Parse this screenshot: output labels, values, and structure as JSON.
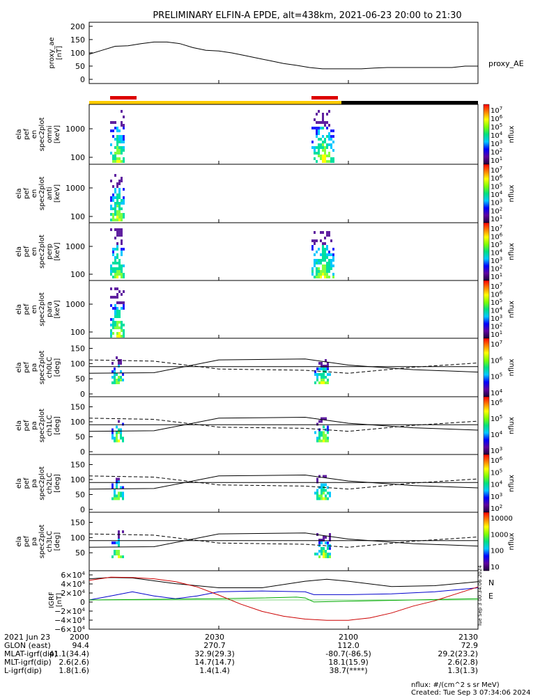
{
  "title": "PRELIMINARY ELFIN-A EPDE, alt=438km, 2021-06-23 20:00 to 21:30",
  "chart_data": {
    "type": "line",
    "x_range": [
      "20:00",
      "21:30"
    ],
    "panels": [
      {
        "id": "proxy_ae",
        "ylabel": [
          "proxy_ae",
          "[nT]"
        ],
        "yticks": [
          "200",
          "150",
          "100",
          "50",
          "0"
        ],
        "ylim": [
          0,
          210
        ],
        "legend": "proxy_AE",
        "series": [
          {
            "name": "proxy_AE",
            "color": "#000000",
            "x": [
              0,
              3,
              6,
              9,
              12,
              15,
              18,
              21,
              24,
              27,
              30,
              33,
              36,
              39,
              42,
              45,
              48,
              51,
              54,
              57,
              60,
              63,
              66,
              69,
              72,
              75,
              78,
              81,
              84,
              87,
              90
            ],
            "y": [
              100,
              115,
              130,
              132,
              140,
              146,
              146,
              140,
              125,
              115,
              112,
              105,
              95,
              85,
              75,
              65,
              58,
              50,
              45,
              45,
              45,
              45,
              48,
              50,
              50,
              50,
              50,
              50,
              50,
              55,
              55
            ]
          }
        ]
      },
      {
        "id": "omni",
        "ylabel": [
          "ela",
          "pef",
          "en",
          "spec2plot",
          "omni",
          "[keV]"
        ],
        "yticks": [
          "1000",
          "100"
        ],
        "cbar_ticks": [
          "10^7",
          "10^6",
          "10^5",
          "10^4",
          "10^3",
          "10^2",
          "10^1"
        ],
        "cbar_label": "nflux"
      },
      {
        "id": "anti",
        "ylabel": [
          "ela",
          "pef",
          "en",
          "spec2plot",
          "anti",
          "[keV]"
        ],
        "yticks": [
          "1000",
          "100"
        ],
        "cbar_ticks": [
          "10^7",
          "10^6",
          "10^5",
          "10^4",
          "10^3",
          "10^2",
          "10^1"
        ],
        "cbar_label": "nflux"
      },
      {
        "id": "perp",
        "ylabel": [
          "ela",
          "pef",
          "en",
          "spec2plot",
          "perp",
          "[keV]"
        ],
        "yticks": [
          "1000",
          "100"
        ],
        "cbar_ticks": [
          "10^7",
          "10^6",
          "10^5",
          "10^4",
          "10^3",
          "10^2",
          "10^1"
        ],
        "cbar_label": "nflux"
      },
      {
        "id": "para",
        "ylabel": [
          "ela",
          "pef",
          "en",
          "spec2plot",
          "para",
          "[keV]"
        ],
        "yticks": [
          "1000",
          "100"
        ],
        "cbar_ticks": [
          "10^7",
          "10^6",
          "10^5",
          "10^4",
          "10^3",
          "10^2",
          "10^1"
        ],
        "cbar_label": "nflux"
      },
      {
        "id": "ch0LC",
        "ylabel": [
          "ela",
          "pef",
          "pa",
          "spec2plot",
          "ch0LC",
          "[deg]"
        ],
        "yticks": [
          "150",
          "100",
          "50",
          "0"
        ],
        "cbar_ticks": [
          "10^7",
          "10^6",
          "10^5",
          "10^4"
        ],
        "cbar_label": "nflux"
      },
      {
        "id": "ch1LC",
        "ylabel": [
          "ela",
          "pef",
          "pa",
          "spec2plot",
          "ch1LC",
          "[deg]"
        ],
        "yticks": [
          "150",
          "100",
          "50",
          "0"
        ],
        "cbar_ticks": [
          "10^6",
          "10^5",
          "10^4",
          "10^3"
        ],
        "cbar_label": "nflux"
      },
      {
        "id": "ch2LC",
        "ylabel": [
          "ela",
          "pef",
          "pa",
          "spec2plot",
          "ch2LC",
          "[deg]"
        ],
        "yticks": [
          "150",
          "100",
          "50",
          "0"
        ],
        "cbar_ticks": [
          "10^6",
          "10^5",
          "10^4",
          "10^3",
          "10^2"
        ],
        "cbar_label": "nflux"
      },
      {
        "id": "ch3LC",
        "ylabel": [
          "ela",
          "pef",
          "pa",
          "spec2plot",
          "ch3LC",
          "[deg]"
        ],
        "yticks": [
          "150",
          "100",
          "50"
        ],
        "cbar_ticks": [
          "10000",
          "1000",
          "100",
          "10"
        ],
        "cbar_label": "nflux"
      },
      {
        "id": "igrf",
        "ylabel": [
          "IGRF",
          "[nT]"
        ],
        "yticks": [
          "6×10^4",
          "4×10^4",
          "2×10^4",
          "0",
          "−2×10^4",
          "−4×10^4",
          "−6×10^4"
        ],
        "ylim": [
          -65000,
          65000
        ],
        "legend": [
          "N",
          "E"
        ],
        "series": [
          {
            "color": "#000000",
            "x": [
              0,
              5,
              10,
              20,
              30,
              40,
              50,
              55,
              60,
              70,
              80,
              90
            ],
            "y": [
              52000,
              55000,
              54000,
              40000,
              30000,
              30000,
              46000,
              51000,
              46000,
              33000,
              35000,
              45000
            ]
          },
          {
            "color": "#0000cc",
            "x": [
              0,
              5,
              10,
              15,
              20,
              25,
              30,
              40,
              50,
              52,
              60,
              70,
              80,
              90
            ],
            "y": [
              0,
              10000,
              20000,
              10000,
              3000,
              10000,
              20000,
              22000,
              20000,
              13000,
              13000,
              15000,
              20000,
              30000
            ]
          },
          {
            "color": "#00aa00",
            "x": [
              0,
              10,
              20,
              30,
              40,
              48,
              50,
              52,
              60,
              70,
              80,
              90
            ],
            "y": [
              0,
              1000,
              2000,
              3000,
              5000,
              7000,
              5000,
              -5000,
              -3000,
              -1000,
              1000,
              3000
            ]
          },
          {
            "color": "#cc0000",
            "x": [
              0,
              5,
              10,
              15,
              20,
              25,
              30,
              35,
              40,
              45,
              50,
              55,
              60,
              65,
              70,
              75,
              80,
              85,
              90
            ],
            "y": [
              48000,
              56000,
              55000,
              52000,
              45000,
              32000,
              12000,
              -10000,
              -28000,
              -40000,
              -47000,
              -50000,
              -50000,
              -44000,
              -32000,
              -15000,
              -2000,
              15000,
              32000
            ]
          }
        ]
      }
    ],
    "x_ticks": [
      "2000",
      "2030",
      "2100",
      "2130"
    ],
    "footer_rows": [
      {
        "label": "2021 Jun 23",
        "values": [
          "2000",
          "2030",
          "2100",
          "2130"
        ]
      },
      {
        "label": "GLON (east)",
        "values": [
          "94.4",
          "270.7",
          "112.0",
          "72.9"
        ]
      },
      {
        "label": "MLAT-igrf(dip)",
        "values": [
          "41.1(34.4)",
          "32.9(29.3)",
          "-80.7(-86.5)",
          "29.2(23.2)"
        ]
      },
      {
        "label": "MLT-igrf(dip)",
        "values": [
          "2.6(2.6)",
          "14.7(14.7)",
          "18.1(15.9)",
          "2.6(2.8)"
        ]
      },
      {
        "label": "L-igrf(dip)",
        "values": [
          "1.8(1.6)",
          "1.4(1.4)",
          "38.7(****)",
          "1.3(1.3)"
        ]
      }
    ],
    "units_note": "nflux: #/(cm^2 s sr MeV)",
    "created": "Created: Tue Sep  3 07:34:06 2024",
    "side_stamp": "Tue Sep  3 00:34:06 2024"
  }
}
